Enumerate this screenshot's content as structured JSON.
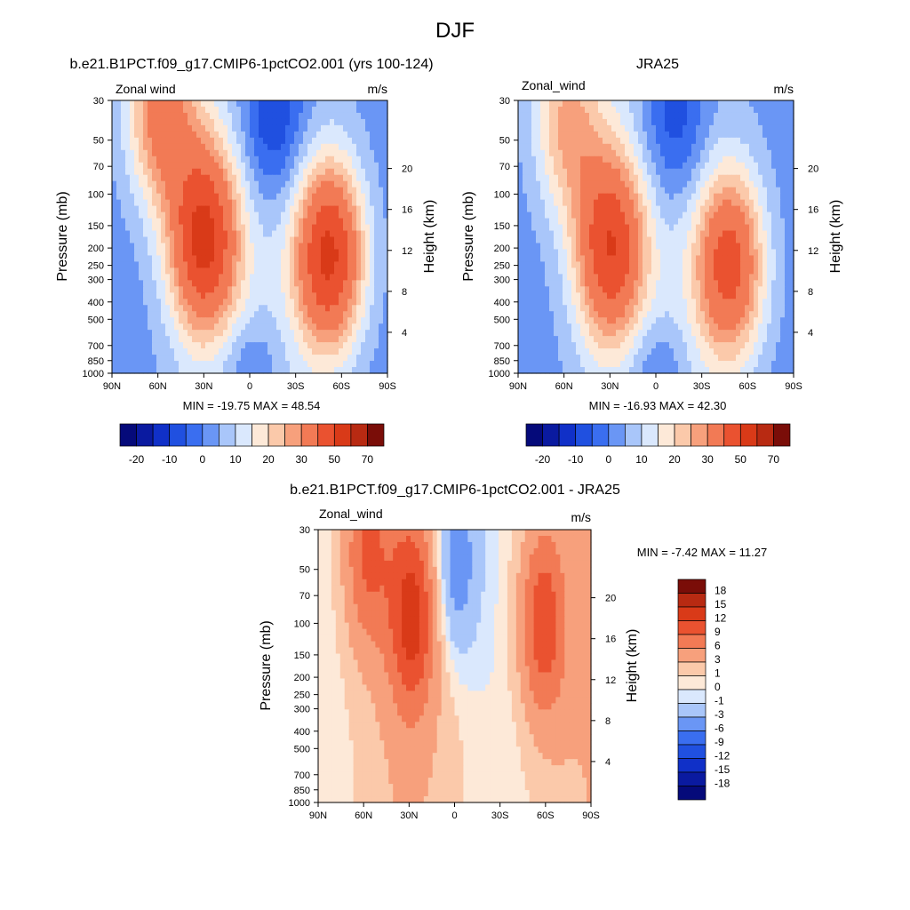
{
  "figure": {
    "title": "DJF"
  },
  "colors": {
    "background": "#ffffff",
    "frame": "#000000"
  },
  "chart_data": [
    {
      "type": "heatmap",
      "id": "model",
      "panel_title": "b.e21.B1PCT.f09_g17.CMIP6-1pctCO2.001 (yrs 100-124)",
      "left_label": "Zonal wind",
      "units": "m/s",
      "xlabel": "",
      "ylabel": "Pressure (mb)",
      "y2label": "Height (km)",
      "x_ticks": [
        "90N",
        "60N",
        "30N",
        "0",
        "30S",
        "60S",
        "90S"
      ],
      "x_tick_values": [
        90,
        60,
        30,
        0,
        -30,
        -60,
        -90
      ],
      "y_ticks": [
        "30",
        "50",
        "70",
        "100",
        "150",
        "200",
        "250",
        "300",
        "400",
        "500",
        "700",
        "850",
        "1000"
      ],
      "y_tick_values": [
        30,
        50,
        70,
        100,
        150,
        200,
        250,
        300,
        400,
        500,
        700,
        850,
        1000
      ],
      "y2_ticks": [
        "20",
        "16",
        "12",
        "8",
        "4"
      ],
      "y2_tick_values": [
        20,
        16,
        12,
        8,
        4
      ],
      "ylim": [
        1000,
        30
      ],
      "min_max_label": "MIN = -19.75  MAX = 48.54",
      "min": -19.75,
      "max": 48.54,
      "colorbar": {
        "orientation": "horizontal",
        "levels": [
          "-20",
          "-10",
          "0",
          "10",
          "20",
          "30",
          "50",
          "70"
        ],
        "colors": [
          "#050a7a",
          "#0a1aa0",
          "#1030c8",
          "#2050e0",
          "#3a6ef0",
          "#6a96f5",
          "#a9c6fa",
          "#dae8fd",
          "#fde9d8",
          "#fbc9aa",
          "#f7a07c",
          "#f27a55",
          "#ea5230",
          "#d93a18",
          "#b82a12",
          "#7a0d08"
        ]
      },
      "jets": [
        {
          "lat": 58,
          "plev": 35,
          "peak": 30
        },
        {
          "lat": 30,
          "plev": 180,
          "peak": 46
        },
        {
          "lat": -52,
          "plev": 220,
          "peak": 48
        },
        {
          "lat": -15,
          "plev": 35,
          "peak": -19
        }
      ]
    },
    {
      "type": "heatmap",
      "id": "obs",
      "panel_title": "JRA25",
      "left_label": "Zonal_wind",
      "units": "m/s",
      "xlabel": "",
      "ylabel": "Pressure (mb)",
      "y2label": "Height (km)",
      "x_ticks": [
        "90N",
        "60N",
        "30N",
        "0",
        "30S",
        "60S",
        "90S"
      ],
      "x_tick_values": [
        90,
        60,
        30,
        0,
        -30,
        -60,
        -90
      ],
      "y_ticks": [
        "30",
        "50",
        "70",
        "100",
        "150",
        "200",
        "250",
        "300",
        "400",
        "500",
        "700",
        "850",
        "1000"
      ],
      "y_tick_values": [
        30,
        50,
        70,
        100,
        150,
        200,
        250,
        300,
        400,
        500,
        700,
        850,
        1000
      ],
      "y2_ticks": [
        "20",
        "16",
        "12",
        "8",
        "4"
      ],
      "y2_tick_values": [
        20,
        16,
        12,
        8,
        4
      ],
      "ylim": [
        1000,
        30
      ],
      "min_max_label": "MIN = -16.93  MAX = 42.30",
      "min": -16.93,
      "max": 42.3,
      "colorbar": {
        "orientation": "horizontal",
        "levels": [
          "-20",
          "-10",
          "0",
          "10",
          "20",
          "30",
          "50",
          "70"
        ],
        "colors": [
          "#050a7a",
          "#0a1aa0",
          "#1030c8",
          "#2050e0",
          "#3a6ef0",
          "#6a96f5",
          "#a9c6fa",
          "#dae8fd",
          "#fde9d8",
          "#fbc9aa",
          "#f7a07c",
          "#f27a55",
          "#ea5230",
          "#d93a18",
          "#b82a12",
          "#7a0d08"
        ]
      },
      "jets": [
        {
          "lat": 58,
          "plev": 40,
          "peak": 22
        },
        {
          "lat": 30,
          "plev": 200,
          "peak": 42
        },
        {
          "lat": -48,
          "plev": 250,
          "peak": 40
        },
        {
          "lat": -12,
          "plev": 35,
          "peak": -17
        }
      ]
    },
    {
      "type": "heatmap",
      "id": "diff",
      "panel_title": "b.e21.B1PCT.f09_g17.CMIP6-1pctCO2.001 - JRA25",
      "left_label": "Zonal_wind",
      "units": "m/s",
      "xlabel": "",
      "ylabel": "Pressure (mb)",
      "y2label": "Height (km)",
      "x_ticks": [
        "90N",
        "60N",
        "30N",
        "0",
        "30S",
        "60S",
        "90S"
      ],
      "x_tick_values": [
        90,
        60,
        30,
        0,
        -30,
        -60,
        -90
      ],
      "y_ticks": [
        "30",
        "50",
        "70",
        "100",
        "150",
        "200",
        "250",
        "300",
        "400",
        "500",
        "700",
        "850",
        "1000"
      ],
      "y_tick_values": [
        30,
        50,
        70,
        100,
        150,
        200,
        250,
        300,
        400,
        500,
        700,
        850,
        1000
      ],
      "y2_ticks": [
        "20",
        "16",
        "12",
        "8",
        "4"
      ],
      "y2_tick_values": [
        20,
        16,
        12,
        8,
        4
      ],
      "ylim": [
        1000,
        30
      ],
      "min_max_label": "MIN =  -7.42  MAX =  11.27",
      "min": -7.42,
      "max": 11.27,
      "colorbar": {
        "orientation": "vertical",
        "levels": [
          "18",
          "15",
          "12",
          "9",
          "6",
          "3",
          "1",
          "0",
          "-1",
          "-3",
          "-6",
          "-9",
          "-12",
          "-15",
          "-18"
        ],
        "colors": [
          "#7a0d08",
          "#b82a12",
          "#d93a18",
          "#ea5230",
          "#f27a55",
          "#f7a07c",
          "#fbc9aa",
          "#fde9d8",
          "#dae8fd",
          "#a9c6fa",
          "#6a96f5",
          "#3a6ef0",
          "#2050e0",
          "#1030c8",
          "#0a1aa0",
          "#050a7a"
        ]
      },
      "jets": [
        {
          "lat": 58,
          "plev": 40,
          "peak": 8
        },
        {
          "lat": 28,
          "plev": 90,
          "peak": 11
        },
        {
          "lat": -58,
          "plev": 100,
          "peak": 10
        },
        {
          "lat": 0,
          "plev": 45,
          "peak": -6
        }
      ]
    }
  ]
}
